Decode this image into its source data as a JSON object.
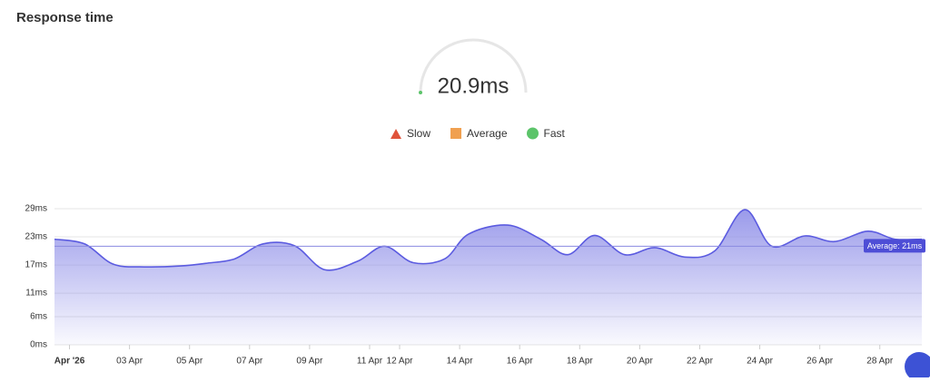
{
  "title": "Response time",
  "gauge_text": "20.9ms",
  "legend": [
    {
      "name": "Slow",
      "color": "#e0533b",
      "shape": "triangle"
    },
    {
      "name": "Average",
      "color": "#f0a050",
      "shape": "square"
    },
    {
      "name": "Fast",
      "color": "#5cc46a",
      "shape": "circle"
    }
  ],
  "chart_data": {
    "type": "area",
    "color": "#5b5be0",
    "x": [
      0.5,
      1.5,
      2.45,
      3.5,
      4.7,
      5.6,
      6.5,
      7.45,
      8.5,
      9.5,
      10.6,
      11.5,
      12.45,
      13.5,
      14.3,
      15.6,
      16.7,
      17.6,
      18.5,
      19.5,
      20.5,
      21.5,
      22.5,
      23.5,
      24.4,
      25.5,
      26.5,
      27.6,
      28.5,
      29.4
    ],
    "values": [
      22.5,
      21.5,
      17.2,
      16.6,
      16.8,
      17.4,
      18.3,
      21.5,
      21.1,
      16,
      17.8,
      21,
      17.5,
      18.3,
      23.6,
      25.5,
      22.5,
      19.2,
      23.3,
      19.2,
      20.7,
      18.7,
      20,
      28.8,
      21,
      23.2,
      22,
      24.2,
      22.5,
      22.5
    ],
    "xlim": [
      0.5,
      29.4
    ],
    "xticks": [
      {
        "value": 1,
        "label": "Apr '26"
      },
      {
        "value": 3,
        "label": "03 Apr"
      },
      {
        "value": 5,
        "label": "05 Apr"
      },
      {
        "value": 7,
        "label": "07 Apr"
      },
      {
        "value": 9,
        "label": "09 Apr"
      },
      {
        "value": 11,
        "label": "11 Apr"
      },
      {
        "value": 12,
        "label": "12 Apr"
      },
      {
        "value": 14,
        "label": "14 Apr"
      },
      {
        "value": 16,
        "label": "16 Apr"
      },
      {
        "value": 18,
        "label": "18 Apr"
      },
      {
        "value": 20,
        "label": "20 Apr"
      },
      {
        "value": 22,
        "label": "22 Apr"
      },
      {
        "value": 24,
        "label": "24 Apr"
      },
      {
        "value": 26,
        "label": "26 Apr"
      },
      {
        "value": 28,
        "label": "28 Apr"
      }
    ],
    "ylim": [
      0,
      29
    ],
    "yticks": [
      {
        "value": 0,
        "label": "0ms"
      },
      {
        "value": 6,
        "label": "6ms"
      },
      {
        "value": 11,
        "label": "11ms"
      },
      {
        "value": 17,
        "label": "17ms"
      },
      {
        "value": 23,
        "label": "23ms"
      },
      {
        "value": 29,
        "label": "29ms"
      }
    ],
    "grid": true,
    "average": 21,
    "average_label": "Average: 21ms"
  }
}
